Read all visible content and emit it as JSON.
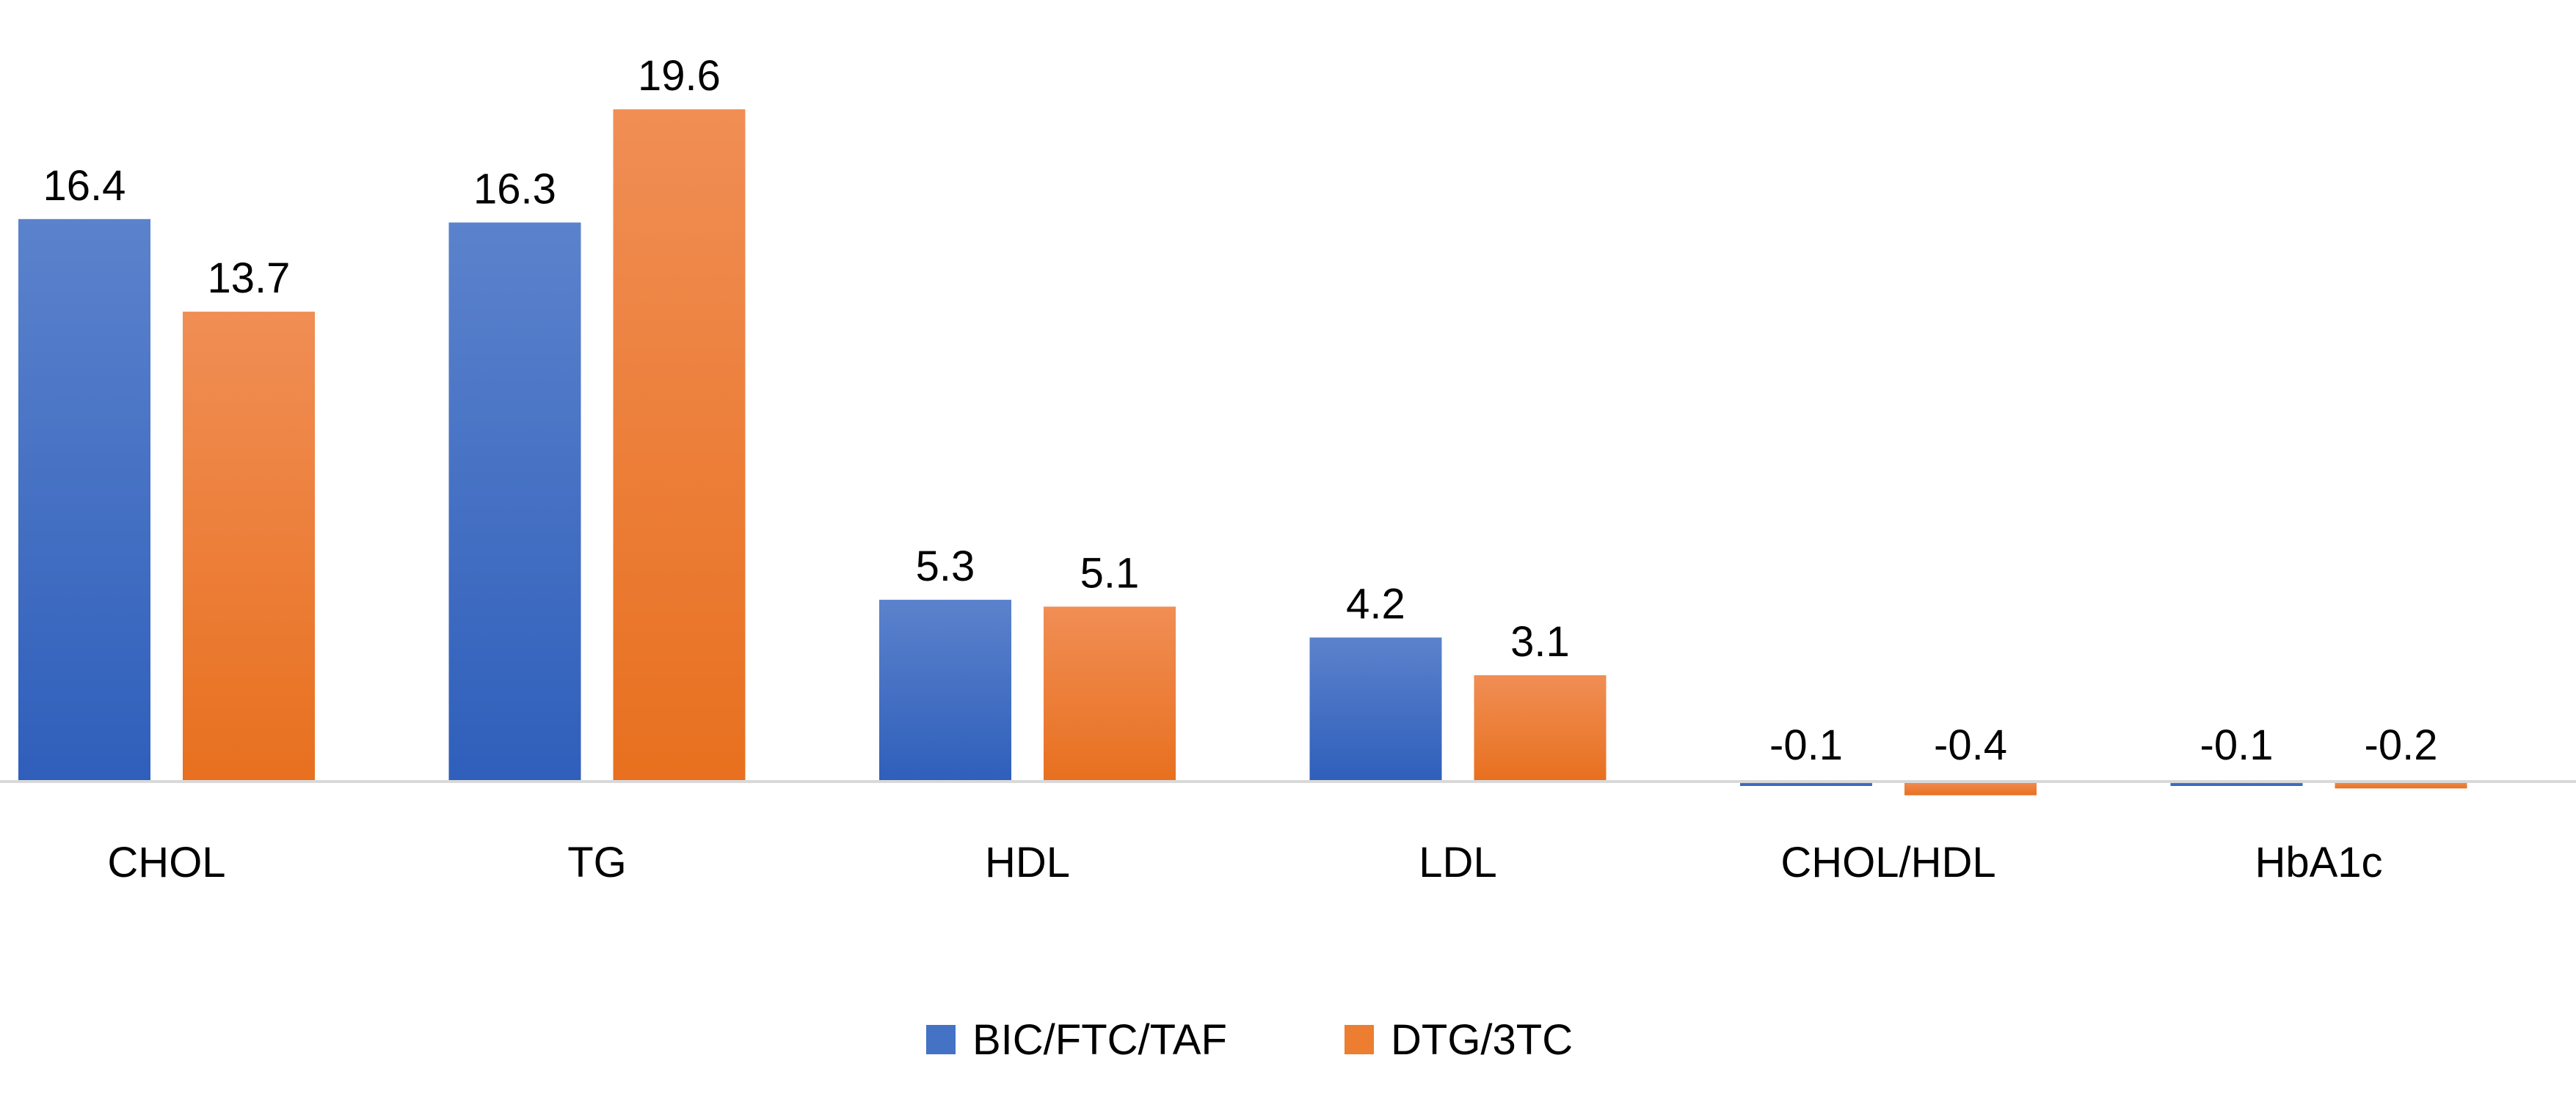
{
  "chart_data": {
    "type": "bar",
    "title": "",
    "xlabel": "",
    "ylabel": "",
    "categories": [
      "CHOL",
      "TG",
      "HDL",
      "LDL",
      "CHOL/HDL",
      "HbA1c"
    ],
    "series": [
      {
        "name": "BIC/FTC/TAF",
        "color": "#4472C4",
        "values": [
          16.4,
          16.3,
          5.3,
          4.2,
          -0.1,
          -0.1
        ],
        "labels": [
          "16.4",
          "16.3",
          "5.3",
          "4.2",
          "-0.1",
          "-0.1"
        ]
      },
      {
        "name": "DTG/3TC",
        "color": "#ED7D31",
        "values": [
          13.7,
          19.6,
          5.1,
          3.1,
          -0.4,
          -0.2
        ],
        "labels": [
          "13.7",
          "19.6",
          "5.1",
          "3.1",
          "-0.4",
          "-0.2"
        ]
      }
    ],
    "ylim": [
      -0.4,
      19.6
    ],
    "grid": false,
    "legend_position": "bottom-center"
  }
}
